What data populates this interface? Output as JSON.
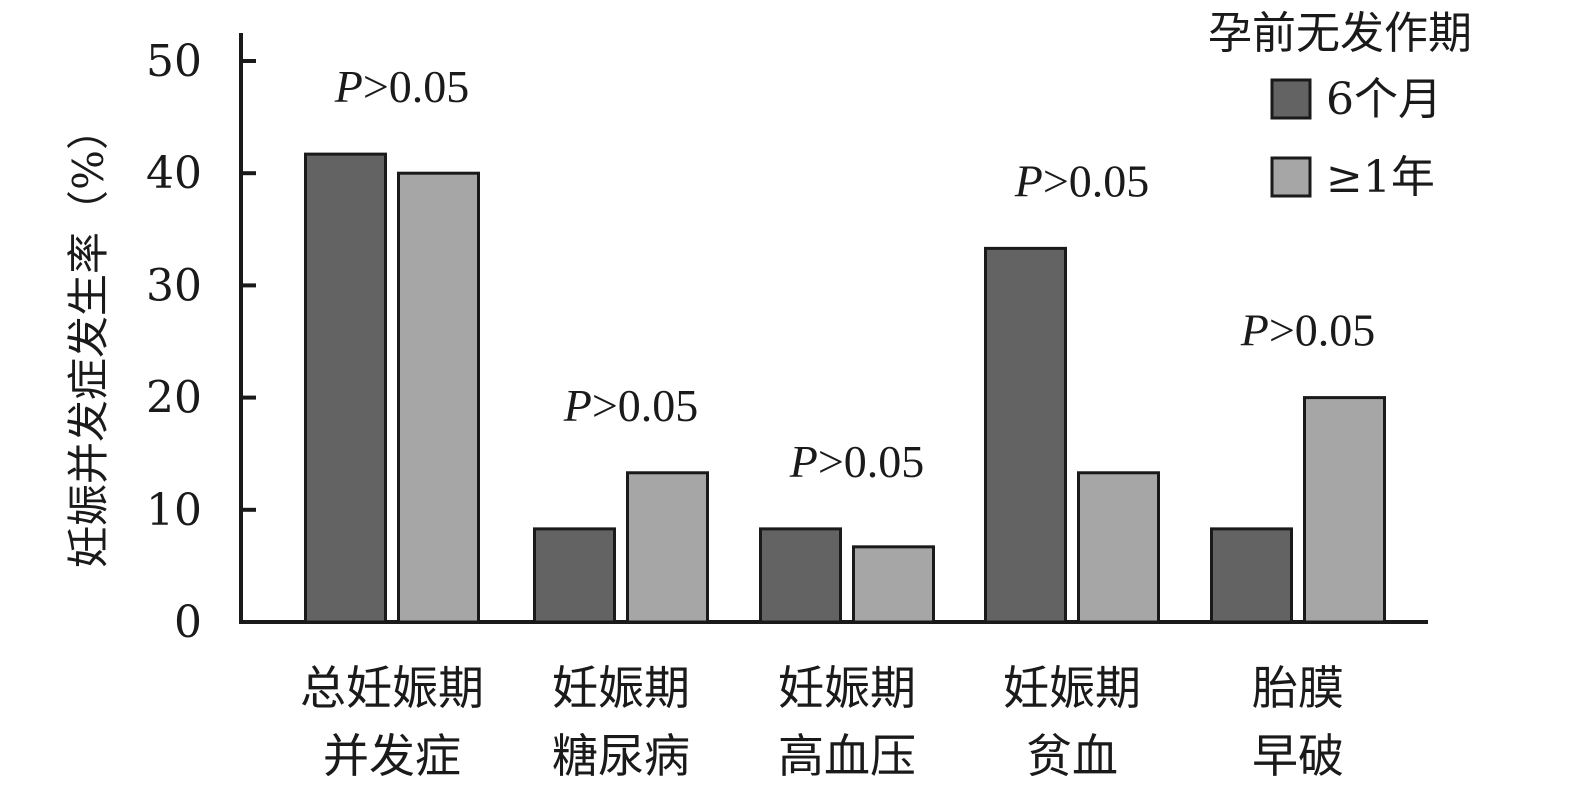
{
  "chart_data": {
    "type": "bar",
    "title": "",
    "ylabel": "妊娠并发症发生率（%）",
    "xlabel": "",
    "ylim": [
      0,
      50
    ],
    "yticks": [
      0,
      10,
      20,
      30,
      40,
      50
    ],
    "categories": [
      [
        "总妊娠期",
        "并发症"
      ],
      [
        "妊娠期",
        "糖尿病"
      ],
      [
        "妊娠期",
        "高血压"
      ],
      [
        "妊娠期",
        "贫血"
      ],
      [
        "胎膜",
        "早破"
      ]
    ],
    "legend": {
      "title": "孕前无发作期",
      "position": "top-right"
    },
    "series": [
      {
        "name": "6个月",
        "color": "#636363",
        "values": [
          41.7,
          8.3,
          8.3,
          33.3,
          8.3
        ]
      },
      {
        "name": "≥1年",
        "color": "#a6a6a6",
        "values": [
          40.0,
          13.3,
          6.7,
          13.3,
          20.0
        ]
      }
    ],
    "annotations": [
      {
        "category_index": 0,
        "italic": "P",
        "rest": ">0.05"
      },
      {
        "category_index": 1,
        "italic": "P",
        "rest": ">0.05"
      },
      {
        "category_index": 2,
        "italic": "P",
        "rest": ">0.05"
      },
      {
        "category_index": 3,
        "italic": "P",
        "rest": ">0.05"
      },
      {
        "category_index": 4,
        "italic": "P",
        "rest": ">0.05"
      }
    ],
    "grid": false
  }
}
